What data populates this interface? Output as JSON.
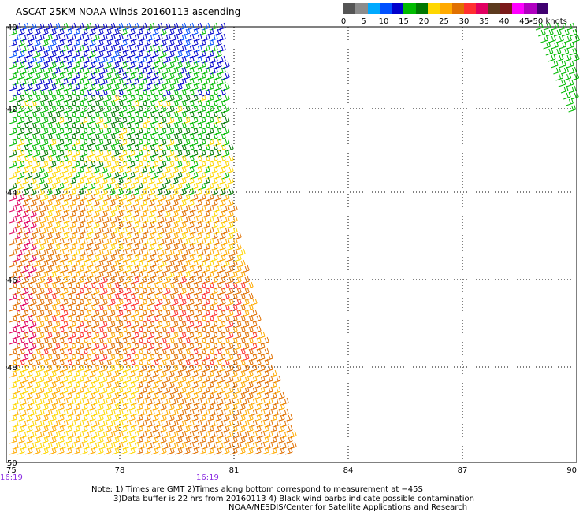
{
  "title": "ASCAT 25KM NOAA Winds 20160113 ascending",
  "scale": {
    "colors": [
      "#555555",
      "#8c8c8c",
      "#00aaff",
      "#0050ff",
      "#0000cc",
      "#00bb00",
      "#007700",
      "#ffd700",
      "#ffaa00",
      "#e07000",
      "#ff3030",
      "#e00060",
      "#5c3a1e",
      "#7a1a1a",
      "#ff00ff",
      "#b000c0",
      "#400070"
    ],
    "ticks": [
      "0",
      "5",
      "10",
      "15",
      "20",
      "25",
      "30",
      "35",
      "40",
      "45",
      ">50 knots"
    ]
  },
  "axes": {
    "x_ticks": [
      "75",
      "78",
      "81",
      "84",
      "87",
      "90"
    ],
    "y_ticks": [
      "40",
      "42",
      "44",
      "46",
      "48",
      "50"
    ],
    "times": [
      "16:19",
      "16:19"
    ]
  },
  "notes": {
    "line1": "Note: 1) Times are GMT 2)Times along bottom correspond to measurement at −45S",
    "line2": "3)Data buffer is 22 hrs from 20160113 4) Black wind barbs indicate possible contamination",
    "credit": "NOAA/NESDIS/Center for Satellite Applications and Research"
  }
}
